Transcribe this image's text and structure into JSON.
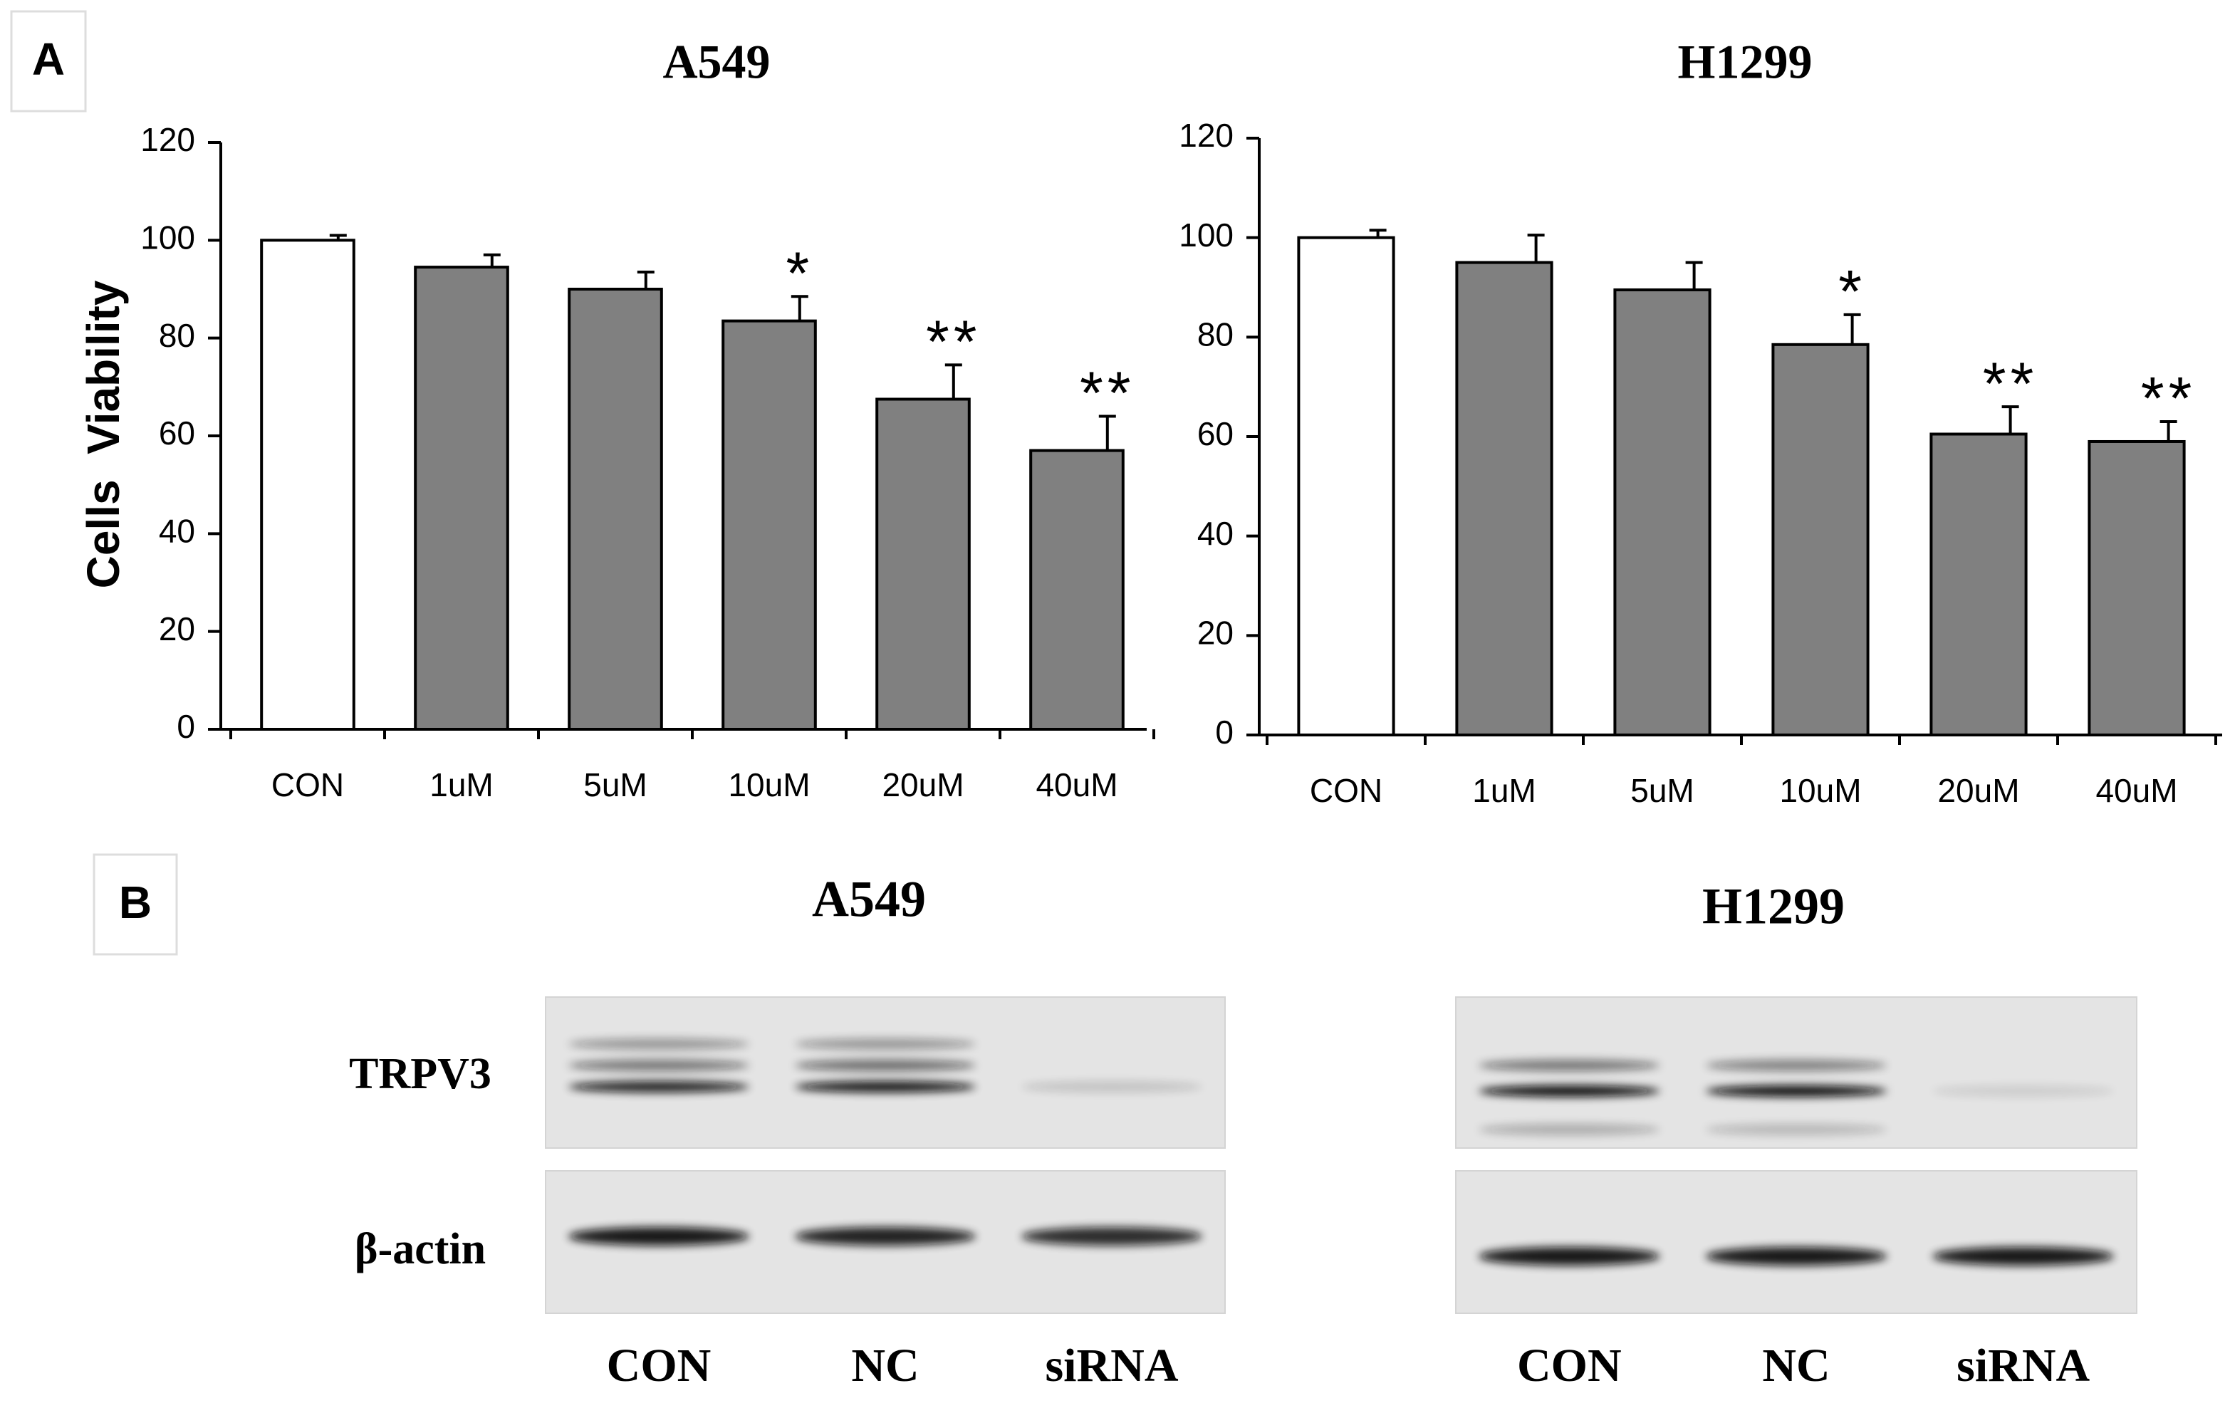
{
  "panel_labels": {
    "a": "A",
    "b": "B"
  },
  "chart_data": [
    {
      "type": "bar",
      "title": "A549",
      "y_label": "Cells  Viability",
      "categories": [
        "CON",
        "1uM",
        "5uM",
        "10uM",
        "20uM",
        "40uM"
      ],
      "values": [
        100,
        94.5,
        90,
        83.5,
        67.5,
        57
      ],
      "errors": [
        1,
        2.5,
        3.5,
        5,
        7,
        7
      ],
      "annotations": [
        null,
        null,
        null,
        "*",
        "**",
        "**"
      ],
      "colors": [
        "#ffffff",
        "#808080",
        "#808080",
        "#808080",
        "#808080",
        "#808080"
      ],
      "ylim": [
        0,
        120
      ],
      "yticks": [
        0,
        20,
        40,
        60,
        80,
        100,
        120
      ]
    },
    {
      "type": "bar",
      "title": "H1299",
      "categories": [
        "CON",
        "1uM",
        "5uM",
        "10uM",
        "20uM",
        "40uM"
      ],
      "values": [
        100,
        95,
        89.5,
        78.5,
        60.5,
        59
      ],
      "errors": [
        1.5,
        5.5,
        5.5,
        6,
        5.5,
        4
      ],
      "annotations": [
        null,
        null,
        null,
        "*",
        "**",
        "**"
      ],
      "colors": [
        "#ffffff",
        "#808080",
        "#808080",
        "#808080",
        "#808080",
        "#808080"
      ],
      "ylim": [
        0,
        120
      ],
      "yticks": [
        0,
        20,
        40,
        60,
        80,
        100,
        120
      ]
    }
  ],
  "western_blot": [
    {
      "title": "A549",
      "rows": [
        "TRPV3",
        "β-actin"
      ],
      "lanes": [
        "CON",
        "NC",
        "siRNA"
      ]
    },
    {
      "title": "H1299",
      "lanes": [
        "CON",
        "NC",
        "siRNA"
      ]
    }
  ]
}
